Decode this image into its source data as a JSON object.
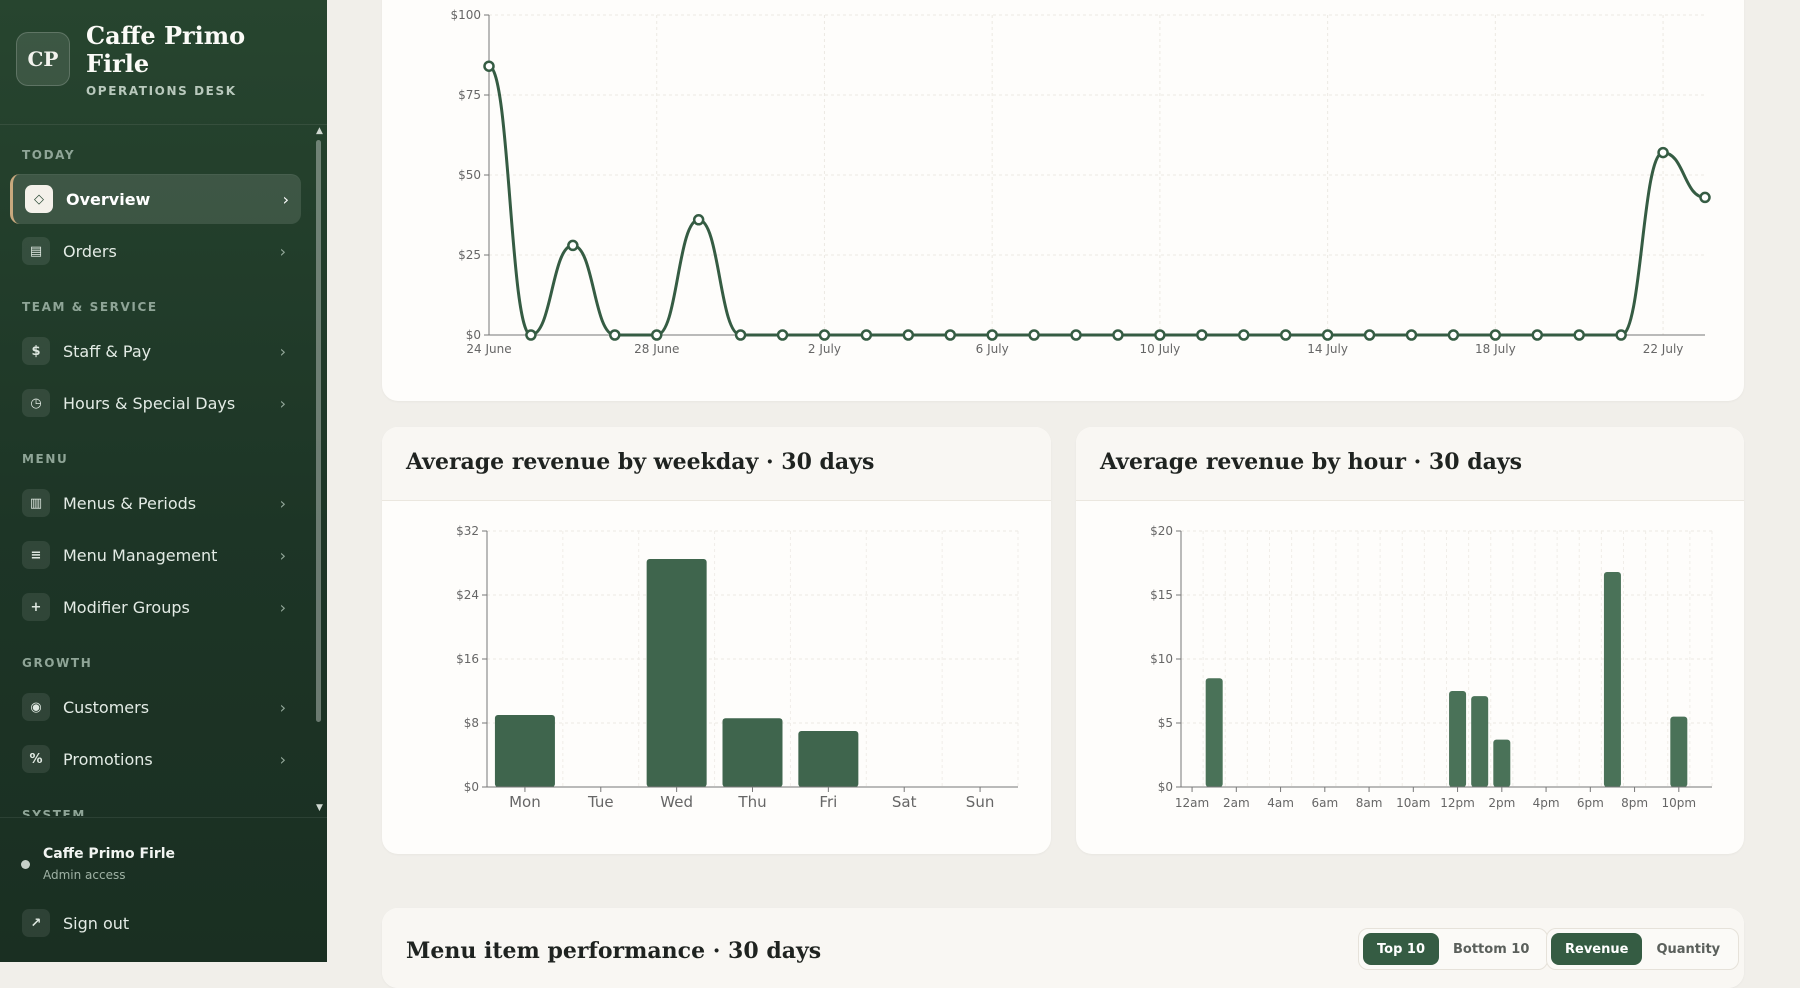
{
  "brand": {
    "initials": "CP",
    "name": "Caffe Primo Firle",
    "subtitle": "OPERATIONS DESK"
  },
  "nav": {
    "sections": [
      {
        "label": "TODAY",
        "items": [
          {
            "label": "Overview",
            "icon": "◇",
            "active": true
          },
          {
            "label": "Orders",
            "icon": "▤"
          }
        ]
      },
      {
        "label": "TEAM & SERVICE",
        "items": [
          {
            "label": "Staff & Pay",
            "icon": "$"
          },
          {
            "label": "Hours & Special Days",
            "icon": "◷"
          }
        ]
      },
      {
        "label": "MENU",
        "items": [
          {
            "label": "Menus & Periods",
            "icon": "▥"
          },
          {
            "label": "Menu Management",
            "icon": "≡"
          },
          {
            "label": "Modifier Groups",
            "icon": "+"
          }
        ]
      },
      {
        "label": "GROWTH",
        "items": [
          {
            "label": "Customers",
            "icon": "◉"
          },
          {
            "label": "Promotions",
            "icon": "%"
          }
        ]
      },
      {
        "label": "SYSTEM",
        "items": []
      }
    ],
    "chevron": "›"
  },
  "user": {
    "name": "Caffe Primo Firle",
    "role": "Admin access"
  },
  "signout": {
    "label": "Sign out",
    "icon": "↗"
  },
  "line_chart": {
    "chart_data": {
      "type": "line",
      "x_labels": [
        "24 June",
        "25 June",
        "26 June",
        "27 June",
        "28 June",
        "29 June",
        "30 June",
        "1 July",
        "2 July",
        "3 July",
        "4 July",
        "5 July",
        "6 July",
        "7 July",
        "8 July",
        "9 July",
        "10 July",
        "11 July",
        "12 July",
        "13 July",
        "14 July",
        "15 July",
        "16 July",
        "17 July",
        "18 July",
        "19 July",
        "20 July",
        "21 July",
        "22 July",
        "23 July"
      ],
      "y": [
        84,
        0,
        28,
        0,
        0,
        36,
        0,
        0,
        0,
        0,
        0,
        0,
        0,
        0,
        0,
        0,
        0,
        0,
        0,
        0,
        0,
        0,
        0,
        0,
        0,
        0,
        0,
        0,
        57,
        43
      ],
      "x_tick_labels": [
        "24 June",
        "28 June",
        "2 July",
        "6 July",
        "10 July",
        "14 July",
        "18 July",
        "22 July"
      ],
      "y_tick_labels": [
        "$0",
        "$25",
        "$50",
        "$75",
        "$100"
      ],
      "ylim": [
        0,
        100
      ],
      "grid": true,
      "color": "#355c43"
    }
  },
  "weekday_chart": {
    "title": "Average revenue by weekday · 30 days",
    "chart_data": {
      "type": "bar",
      "categories": [
        "Mon",
        "Tue",
        "Wed",
        "Thu",
        "Fri",
        "Sat",
        "Sun"
      ],
      "values": [
        9,
        0,
        28.5,
        8.6,
        7,
        0,
        0
      ],
      "y_tick_labels": [
        "$0",
        "$8",
        "$16",
        "$24",
        "$32"
      ],
      "ylim": [
        0,
        32
      ],
      "grid": true,
      "color": "#3f654d"
    }
  },
  "hour_chart": {
    "title": "Average revenue by hour · 30 days",
    "chart_data": {
      "type": "bar",
      "categories": [
        "12am",
        "1am",
        "2am",
        "3am",
        "4am",
        "5am",
        "6am",
        "7am",
        "8am",
        "9am",
        "10am",
        "11am",
        "12pm",
        "1pm",
        "2pm",
        "3pm",
        "4pm",
        "5pm",
        "6pm",
        "7pm",
        "8pm",
        "9pm",
        "10pm",
        "11pm"
      ],
      "values": [
        0,
        8.5,
        0,
        0,
        0,
        0,
        0,
        0,
        0,
        0,
        0,
        0,
        7.5,
        7.1,
        3.7,
        0,
        0,
        0,
        0,
        16.8,
        0,
        0,
        5.5,
        0
      ],
      "x_tick_labels": [
        "12am",
        "2am",
        "4am",
        "6am",
        "8am",
        "10am",
        "12pm",
        "2pm",
        "4pm",
        "6pm",
        "8pm",
        "10pm"
      ],
      "y_tick_labels": [
        "$0",
        "$5",
        "$10",
        "$15",
        "$20"
      ],
      "ylim": [
        0,
        20
      ],
      "grid": true,
      "color": "#4a7258"
    }
  },
  "menu_perf": {
    "title": "Menu item performance · 30 days",
    "rank_toggle": {
      "options": [
        "Top 10",
        "Bottom 10"
      ],
      "selected": "Top 10"
    },
    "metric_toggle": {
      "options": [
        "Revenue",
        "Quantity"
      ],
      "selected": "Revenue"
    }
  }
}
